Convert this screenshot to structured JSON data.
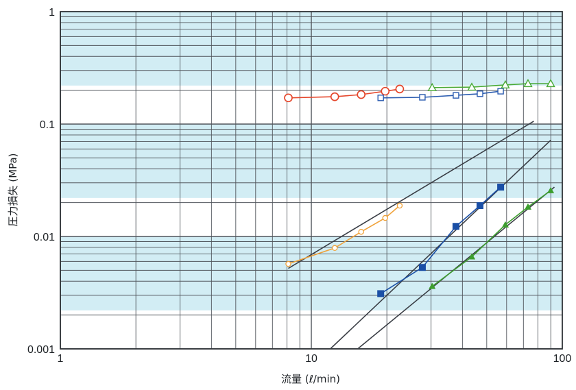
{
  "chart_data": {
    "type": "line",
    "xlabel": "流量 (ℓ/min)",
    "ylabel": "圧力損失 (MPa)",
    "x_scale": "log",
    "y_scale": "log",
    "xlim": [
      1,
      100
    ],
    "ylim": [
      0.001,
      1
    ],
    "x_ticks": [
      "1",
      "10",
      "100"
    ],
    "y_ticks": [
      "1",
      "0.1",
      "0.01",
      "0.001"
    ],
    "grid": true,
    "legend": "none",
    "series": [
      {
        "marker": "open-circle",
        "color": "#e5472c",
        "x": [
          8.1,
          12.4,
          15.8,
          19.7,
          22.5
        ],
        "y": [
          0.171,
          0.175,
          0.183,
          0.196,
          0.205
        ]
      },
      {
        "marker": "open-square",
        "color": "#2b5cb0",
        "x": [
          18.9,
          27.7,
          37.7,
          47,
          56.8
        ],
        "y": [
          0.171,
          0.173,
          0.18,
          0.186,
          0.196
        ]
      },
      {
        "marker": "open-triangle",
        "color": "#4aaa36",
        "x": [
          30.3,
          43.6,
          59.3,
          73,
          89.9
        ],
        "y": [
          0.211,
          0.213,
          0.223,
          0.229,
          0.229
        ]
      },
      {
        "marker": "open-circle-small",
        "color": "#f0a23a",
        "x": [
          8.1,
          12.4,
          15.8,
          19.7,
          22.5
        ],
        "y": [
          0.0057,
          0.0079,
          0.011,
          0.0146,
          0.0188
        ]
      },
      {
        "marker": "filled-square",
        "color": "#1a4fa6",
        "x": [
          18.9,
          27.7,
          37.7,
          47,
          56.8
        ],
        "y": [
          0.0031,
          0.0053,
          0.0123,
          0.0188,
          0.0275
        ]
      },
      {
        "marker": "filled-triangle",
        "color": "#3d9e2e",
        "x": [
          30.3,
          43.6,
          59.3,
          73,
          89.9
        ],
        "y": [
          0.0036,
          0.0066,
          0.0127,
          0.0183,
          0.0256
        ]
      }
    ],
    "reference_lines": [
      {
        "color": "#3a3e45",
        "x": [
          8.1,
          77
        ],
        "y": [
          0.0052,
          0.106
        ]
      },
      {
        "color": "#3a3e45",
        "x": [
          11.9,
          90
        ],
        "y": [
          0.001,
          0.072
        ]
      },
      {
        "color": "#3a3e45",
        "x": [
          15.3,
          93
        ],
        "y": [
          0.001,
          0.0275
        ]
      }
    ],
    "colors": {
      "band": "#d2edf4",
      "grid": "#50555b",
      "frame": "#2e3236"
    }
  }
}
